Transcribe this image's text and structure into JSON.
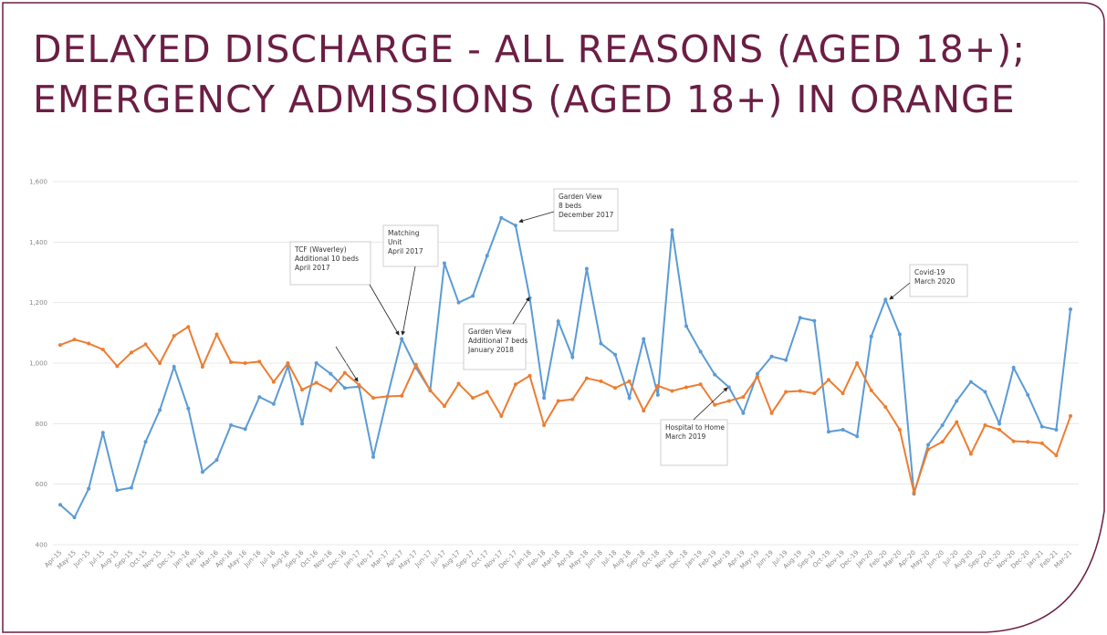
{
  "chart_data": {
    "type": "line",
    "title_lines": [
      "DELAYED DISCHARGE - ALL REASONS (AGED 18+);",
      "EMERGENCY ADMISSIONS (AGED 18+) IN ORANGE"
    ],
    "categories": [
      "Apr-15",
      "May-15",
      "Jun-15",
      "Jul-15",
      "Aug-15",
      "Sep-15",
      "Oct-15",
      "Nov-15",
      "Dec-15",
      "Jan-16",
      "Feb-16",
      "Mar-16",
      "Apr-16",
      "May-16",
      "Jun-16",
      "Jul-16",
      "Aug-16",
      "Sep-16",
      "Oct-16",
      "Nov-16",
      "Dec-16",
      "Jan-17",
      "Feb-17",
      "Mar-17",
      "Apr-17",
      "May-17",
      "Jun-17",
      "Jul-17",
      "Aug-17",
      "Sep-17",
      "Oct-17",
      "Nov-17",
      "Dec-17",
      "Jan-18",
      "Feb-18",
      "Mar-18",
      "Apr-18",
      "May-18",
      "Jun-18",
      "Jul-18",
      "Aug-18",
      "Sep-18",
      "Oct-18",
      "Nov-18",
      "Dec-18",
      "Jan-19",
      "Feb-19",
      "Mar-19",
      "Apr-19",
      "May-19",
      "Jun-19",
      "Jul-19",
      "Aug-19",
      "Sep-19",
      "Oct-19",
      "Nov-19",
      "Dec-19",
      "Jan-20",
      "Feb-20",
      "Mar-20",
      "Apr-20",
      "May-20",
      "Jun-20",
      "Jul-20",
      "Aug-20",
      "Sep-20",
      "Oct-20",
      "Nov-20",
      "Dec-20",
      "Jan-21",
      "Feb-21",
      "Mar-21"
    ],
    "series": [
      {
        "color": "#5b9bd5",
        "values": [
          532,
          490,
          585,
          770,
          580,
          588,
          740,
          845,
          988,
          850,
          640,
          680,
          795,
          782,
          888,
          865,
          990,
          800,
          1000,
          965,
          918,
          922,
          690,
          890,
          1080,
          985,
          910,
          1330,
          1200,
          1222,
          1355,
          1480,
          1455,
          1215,
          885,
          1138,
          1020,
          1312,
          1065,
          1028,
          885,
          1080,
          895,
          1440,
          1122,
          1038,
          962,
          920,
          835,
          965,
          1022,
          1010,
          1150,
          1140,
          773,
          780,
          758,
          1088,
          1210,
          1095,
          568,
          730,
          795,
          875,
          938,
          905,
          800,
          985,
          895,
          790,
          780,
          1178
        ]
      },
      {
        "color": "#ed7d31",
        "values": [
          1060,
          1078,
          1065,
          1045,
          990,
          1035,
          1062,
          1000,
          1090,
          1120,
          988,
          1095,
          1003,
          1000,
          1005,
          938,
          1000,
          912,
          935,
          910,
          968,
          928,
          885,
          890,
          892,
          995,
          910,
          858,
          932,
          885,
          905,
          825,
          930,
          958,
          795,
          875,
          880,
          950,
          940,
          918,
          940,
          843,
          925,
          908,
          920,
          930,
          862,
          875,
          888,
          955,
          835,
          905,
          908,
          900,
          945,
          900,
          1000,
          910,
          855,
          780,
          572,
          715,
          740,
          805,
          700,
          795,
          780,
          742,
          740,
          735,
          695,
          825
        ]
      }
    ],
    "ylim": [
      400,
      1600
    ],
    "yticks": [
      400,
      600,
      800,
      {
        "value": 1000,
        "label": "1,000"
      },
      {
        "value": 1200,
        "label": "1,200"
      },
      {
        "value": 1400,
        "label": "1,400"
      },
      {
        "value": 1600,
        "label": "1,600"
      }
    ],
    "grid": true,
    "annotations": [
      {
        "lines": [
          "TCF (Waverley)",
          "Additional 10 beds",
          "April 2017"
        ]
      },
      {
        "lines": [
          "Matching",
          "Unit",
          "April 2017"
        ]
      },
      {
        "lines": [
          "Garden View",
          "8 beds",
          "December 2017"
        ]
      },
      {
        "lines": [
          "Garden View",
          "Additional 7 beds",
          "January 2018"
        ]
      },
      {
        "lines": [
          "Hospital to Home",
          "March 2019"
        ]
      },
      {
        "lines": [
          "Covid-19",
          "March 2020"
        ]
      }
    ]
  }
}
